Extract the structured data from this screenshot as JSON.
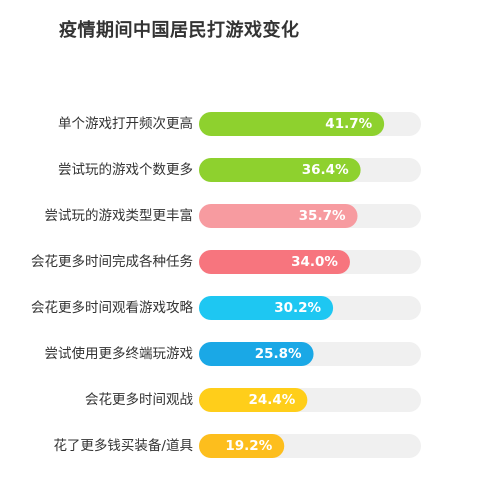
{
  "chart_data": {
    "type": "bar",
    "orientation": "horizontal",
    "title": "疫情期间中国居民打游戏变化",
    "categories": [
      "单个游戏打开频次更高",
      "尝试玩的游戏个数更多",
      "尝试玩的游戏类型更丰富",
      "会花更多时间完成各种任务",
      "会花更多时间观看游戏攻略",
      "尝试使用更多终端玩游戏",
      "会花更多时间观战",
      "花了更多钱买装备/道具"
    ],
    "values": [
      41.7,
      36.4,
      35.7,
      34.0,
      30.2,
      25.8,
      24.4,
      19.2
    ],
    "value_labels": [
      "41.7%",
      "36.4%",
      "35.7%",
      "34.0%",
      "30.2%",
      "25.8%",
      "24.4%",
      "19.2%"
    ],
    "bar_colors": [
      "#8ED12E",
      "#8ED12E",
      "#F79BA0",
      "#F7757E",
      "#1EC7F2",
      "#1AA8E6",
      "#FFCE1A",
      "#FDBE1D"
    ],
    "track_color": "#F0F0F0",
    "xlim": [
      0,
      50
    ],
    "xlabel": "",
    "ylabel": "",
    "grid": false,
    "legend": "none"
  }
}
